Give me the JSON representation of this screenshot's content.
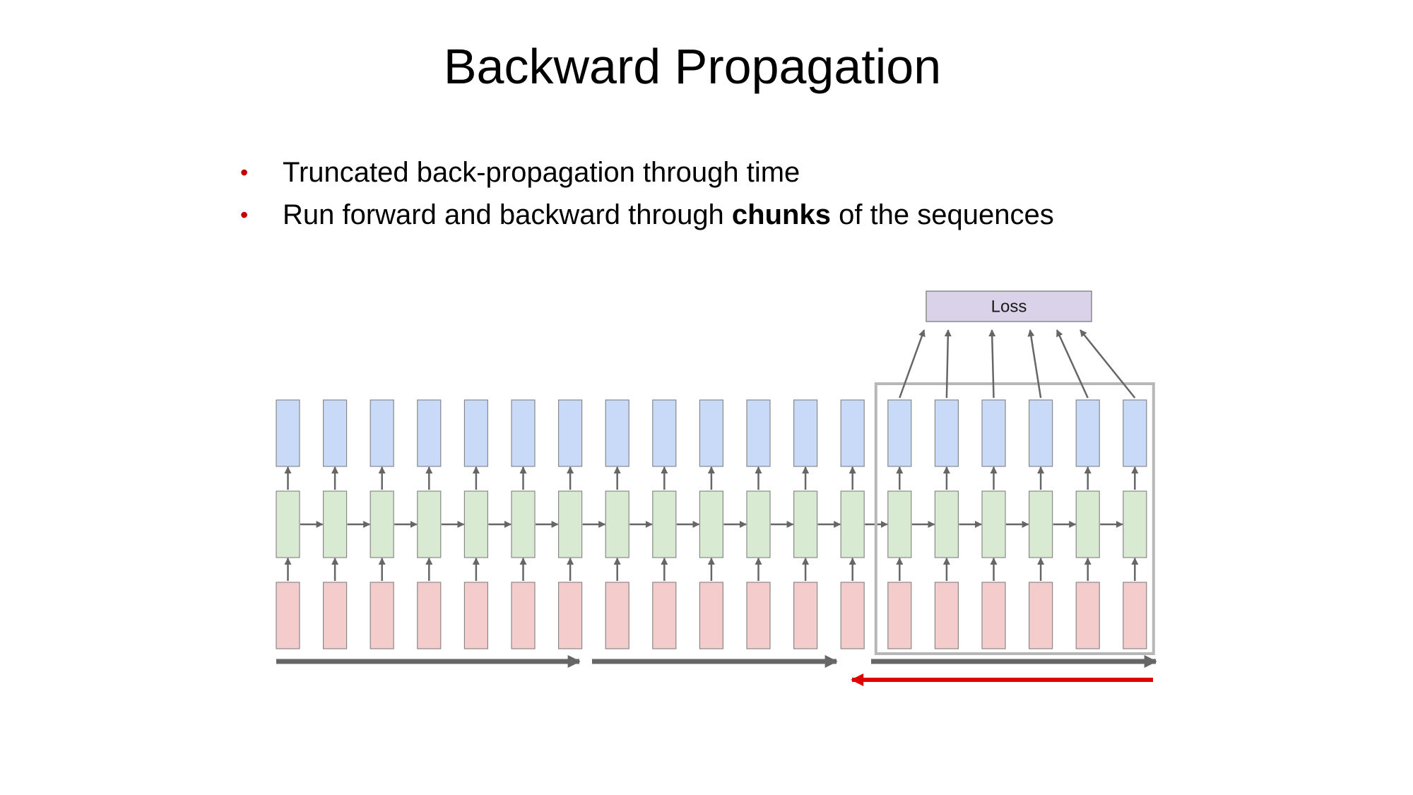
{
  "slide": {
    "title": "Backward Propagation",
    "bullets": [
      {
        "text": "Truncated back-propagation through time"
      },
      {
        "pre": "Run forward and backward through ",
        "bold": "chunks",
        "post": " of the sequences"
      }
    ]
  },
  "diagram": {
    "loss_label": "Loss",
    "num_steps": 19,
    "chunk_size": 6,
    "colors": {
      "output": "#c9daf8",
      "hidden": "#d9ead3",
      "input": "#f4cccc",
      "loss": "#d9d2e9",
      "arrow": "#666666",
      "backward": "#e00000",
      "chunk_box": "#b7b7b7"
    }
  }
}
